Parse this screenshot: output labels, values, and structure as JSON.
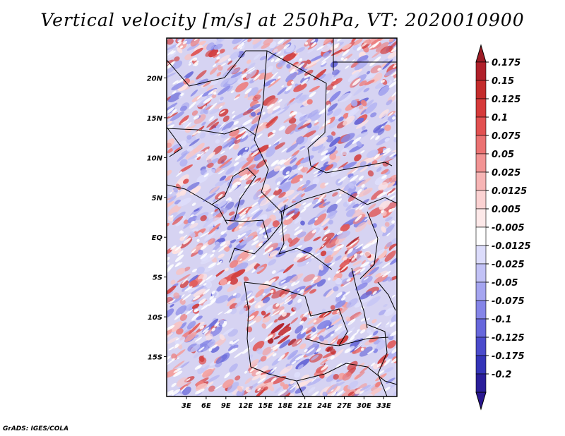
{
  "title": "Vertical velocity [m/s] at 250hPa, VT: 2020010900",
  "credit": "GrADS: IGES/COLA",
  "axes": {
    "lon_range": [
      0,
      35
    ],
    "lat_range": [
      -20,
      25
    ],
    "x_ticks": [
      {
        "value": 3,
        "label": "3E"
      },
      {
        "value": 6,
        "label": "6E"
      },
      {
        "value": 9,
        "label": "9E"
      },
      {
        "value": 12,
        "label": "12E"
      },
      {
        "value": 15,
        "label": "15E"
      },
      {
        "value": 18,
        "label": "18E"
      },
      {
        "value": 21,
        "label": "21E"
      },
      {
        "value": 24,
        "label": "24E"
      },
      {
        "value": 27,
        "label": "27E"
      },
      {
        "value": 30,
        "label": "30E"
      },
      {
        "value": 33,
        "label": "33E"
      }
    ],
    "y_ticks": [
      {
        "value": 20,
        "label": "20N"
      },
      {
        "value": 15,
        "label": "15N"
      },
      {
        "value": 10,
        "label": "10N"
      },
      {
        "value": 5,
        "label": "5N"
      },
      {
        "value": 0,
        "label": "EQ"
      },
      {
        "value": -5,
        "label": "5S"
      },
      {
        "value": -10,
        "label": "10S"
      },
      {
        "value": -15,
        "label": "15S"
      }
    ]
  },
  "colorbar": {
    "levels": [
      {
        "label": "0.175",
        "color": "#b0202a"
      },
      {
        "label": "0.15",
        "color": "#c42c2c"
      },
      {
        "label": "0.125",
        "color": "#d63a3a"
      },
      {
        "label": "0.1",
        "color": "#e25151"
      },
      {
        "label": "0.075",
        "color": "#eb7272"
      },
      {
        "label": "0.05",
        "color": "#f29494"
      },
      {
        "label": "0.025",
        "color": "#f7b5b5"
      },
      {
        "label": "0.0125",
        "color": "#fbd2d2"
      },
      {
        "label": "0.005",
        "color": "#fde9e9"
      },
      {
        "label": "-0.005",
        "color": "#ffffff"
      },
      {
        "label": "-0.0125",
        "color": "#dcdcfb"
      },
      {
        "label": "-0.025",
        "color": "#c2c2f6"
      },
      {
        "label": "-0.05",
        "color": "#a5a5f0"
      },
      {
        "label": "-0.075",
        "color": "#8585e8"
      },
      {
        "label": "-0.1",
        "color": "#6767dc"
      },
      {
        "label": "-0.125",
        "color": "#4b4bcc"
      },
      {
        "label": "-0.175",
        "color": "#3434b8"
      },
      {
        "label": "-0.2",
        "color": "#2a1e9a"
      }
    ],
    "top_tip_color": "#9c1c26",
    "bottom_tip_color": "#2a1890"
  }
}
